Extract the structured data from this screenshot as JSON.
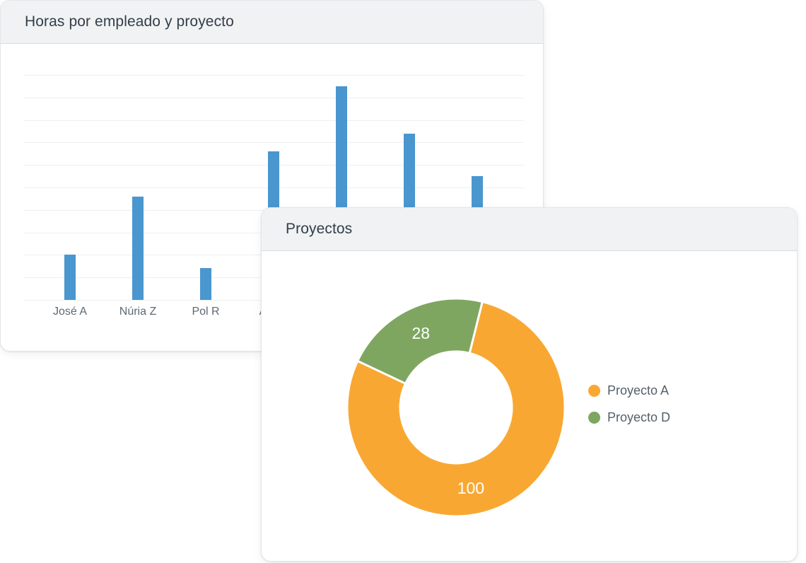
{
  "chart_data": [
    {
      "type": "bar",
      "title": "Horas por empleado y proyecto",
      "categories": [
        "José A",
        "Núria Z",
        "Pol R",
        "A",
        "",
        "",
        ""
      ],
      "values": [
        20,
        46,
        14,
        66,
        95,
        74,
        55
      ],
      "xlabel": "",
      "ylabel": "",
      "ylim": [
        0,
        100
      ],
      "grid": true,
      "legend": "none",
      "bar_color": "#4a96cf",
      "gridline_color": "#edeff1",
      "label_color": "#5d6973"
    },
    {
      "type": "pie",
      "title": "Proyectos",
      "labels": [
        "Proyecto A",
        "Proyecto D"
      ],
      "values": [
        100,
        28
      ],
      "colors": [
        "#f8a832",
        "#7ea661"
      ],
      "donut": true,
      "legend_position": "right",
      "data_label_color": "#ffffff"
    }
  ],
  "colors": {
    "card_header_bg": "#f0f2f4",
    "card_border": "#e2e6e9",
    "title_text": "#333e48",
    "legend_text": "#556069"
  }
}
